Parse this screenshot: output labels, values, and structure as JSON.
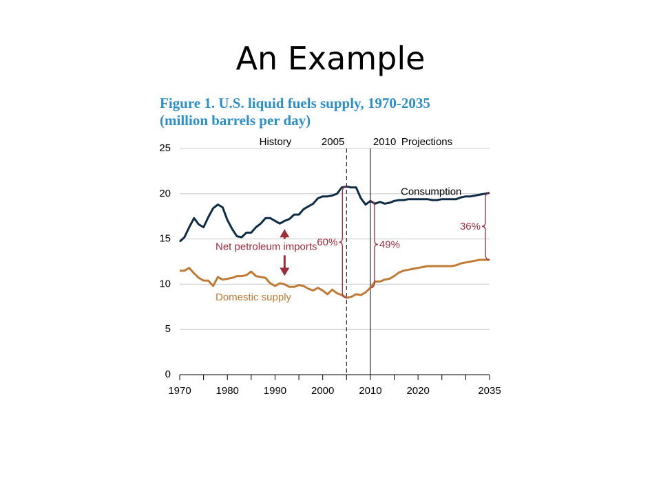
{
  "slide": {
    "title": "An Example"
  },
  "figure": {
    "title_line1": "Figure 1. U.S. liquid fuels supply, 1970-2035",
    "title_line2": "(million barrels per day)"
  },
  "chart_data": {
    "type": "line",
    "xlim": [
      1970,
      2035
    ],
    "ylim": [
      0,
      25
    ],
    "y_ticks": [
      0,
      5,
      10,
      15,
      20,
      25
    ],
    "x_tick_labels": [
      {
        "x": 1970,
        "label": "1970"
      },
      {
        "x": 1980,
        "label": "1980"
      },
      {
        "x": 1990,
        "label": "1990"
      },
      {
        "x": 2000,
        "label": "2000"
      },
      {
        "x": 2010,
        "label": "2010"
      },
      {
        "x": 2020,
        "label": "2020"
      },
      {
        "x": 2035,
        "label": "2035"
      }
    ],
    "x_minor_ticks": [
      1975,
      1985,
      1995,
      2005,
      2015,
      2025,
      2030
    ],
    "grid": "horizontal",
    "colors": {
      "consumption": "#0d2b45",
      "domestic": "#c07a33",
      "annotation": "#9e2a3a",
      "grid": "#c8c8c8"
    },
    "period_labels": {
      "history": "History",
      "projections": "Projections"
    },
    "reference_lines": [
      {
        "x": 2005,
        "label": "2005",
        "style": "dashed"
      },
      {
        "x": 2010,
        "label": "2010",
        "style": "solid"
      }
    ],
    "series": [
      {
        "name": "Consumption",
        "color": "#0d2b45",
        "x": [
          1970,
          1971,
          1972,
          1973,
          1974,
          1975,
          1976,
          1977,
          1978,
          1979,
          1980,
          1981,
          1982,
          1983,
          1984,
          1985,
          1986,
          1987,
          1988,
          1989,
          1990,
          1991,
          1992,
          1993,
          1994,
          1995,
          1996,
          1997,
          1998,
          1999,
          2000,
          2001,
          2002,
          2003,
          2004,
          2005,
          2006,
          2007,
          2008,
          2009,
          2010,
          2011,
          2012,
          2013,
          2014,
          2015,
          2016,
          2017,
          2018,
          2019,
          2020,
          2021,
          2022,
          2023,
          2024,
          2025,
          2026,
          2027,
          2028,
          2029,
          2030,
          2031,
          2032,
          2033,
          2034,
          2035
        ],
        "values": [
          14.7,
          15.2,
          16.3,
          17.3,
          16.6,
          16.3,
          17.4,
          18.4,
          18.8,
          18.5,
          17.1,
          16.1,
          15.3,
          15.2,
          15.7,
          15.7,
          16.3,
          16.7,
          17.3,
          17.3,
          17.0,
          16.7,
          17.0,
          17.2,
          17.7,
          17.7,
          18.3,
          18.6,
          18.9,
          19.5,
          19.7,
          19.7,
          19.8,
          20.0,
          20.7,
          20.8,
          20.7,
          20.7,
          19.5,
          18.8,
          19.2,
          18.9,
          19.1,
          18.9,
          19.0,
          19.2,
          19.3,
          19.3,
          19.4,
          19.4,
          19.4,
          19.4,
          19.4,
          19.3,
          19.3,
          19.4,
          19.4,
          19.4,
          19.4,
          19.6,
          19.7,
          19.7,
          19.8,
          19.9,
          20.0,
          20.1
        ]
      },
      {
        "name": "Domestic supply",
        "color": "#c07a33",
        "x": [
          1970,
          1971,
          1972,
          1973,
          1974,
          1975,
          1976,
          1977,
          1978,
          1979,
          1980,
          1981,
          1982,
          1983,
          1984,
          1985,
          1986,
          1987,
          1988,
          1989,
          1990,
          1991,
          1992,
          1993,
          1994,
          1995,
          1996,
          1997,
          1998,
          1999,
          2000,
          2001,
          2002,
          2003,
          2004,
          2005,
          2006,
          2007,
          2008,
          2009,
          2010,
          2011,
          2012,
          2013,
          2014,
          2015,
          2016,
          2017,
          2018,
          2019,
          2020,
          2021,
          2022,
          2023,
          2024,
          2025,
          2026,
          2027,
          2028,
          2029,
          2030,
          2031,
          2032,
          2033,
          2034,
          2035
        ],
        "values": [
          11.5,
          11.5,
          11.8,
          11.2,
          10.7,
          10.4,
          10.4,
          9.8,
          10.8,
          10.5,
          10.6,
          10.7,
          10.9,
          10.9,
          11.0,
          11.4,
          10.9,
          10.8,
          10.7,
          10.1,
          9.8,
          10.1,
          10.0,
          9.7,
          9.7,
          9.9,
          9.8,
          9.5,
          9.3,
          9.6,
          9.3,
          8.9,
          9.4,
          9.0,
          8.8,
          8.5,
          8.6,
          8.9,
          8.8,
          9.1,
          9.6,
          10.3,
          10.3,
          10.5,
          10.6,
          10.9,
          11.3,
          11.5,
          11.6,
          11.7,
          11.8,
          11.9,
          12.0,
          12.0,
          12.0,
          12.0,
          12.0,
          12.0,
          12.1,
          12.3,
          12.4,
          12.5,
          12.6,
          12.7,
          12.7,
          12.7
        ]
      }
    ],
    "annotations": {
      "net_imports_label": "Net petroleum imports",
      "net_imports_arrow_x": 1992,
      "brackets": [
        {
          "x": 2005,
          "label": "60%",
          "top": 20.8,
          "bottom": 8.5,
          "side": "left"
        },
        {
          "x": 2010,
          "label": "49%",
          "top": 19.2,
          "bottom": 9.6,
          "side": "right"
        },
        {
          "x": 2035,
          "label": "36%",
          "top": 20.1,
          "bottom": 12.7,
          "side": "left"
        }
      ]
    }
  }
}
